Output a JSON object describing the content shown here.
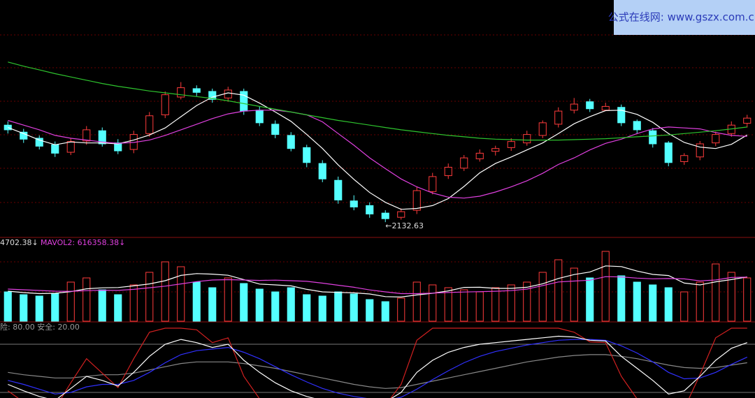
{
  "watermark": "公式在线网: www.gszx.com.cn",
  "chart_data": [
    {
      "type": "candlestick",
      "open": [
        2340,
        2325,
        2312,
        2298,
        2282,
        2306,
        2328,
        2302,
        2288,
        2322,
        2362,
        2400,
        2418,
        2412,
        2398,
        2412,
        2372,
        2342,
        2318,
        2292,
        2258,
        2222,
        2178,
        2168,
        2152,
        2143,
        2158,
        2198,
        2232,
        2248,
        2268,
        2284,
        2292,
        2302,
        2318,
        2342,
        2372,
        2390,
        2372,
        2378,
        2348,
        2328,
        2302,
        2262,
        2272,
        2302,
        2322,
        2344
      ],
      "high": [
        2348,
        2332,
        2318,
        2305,
        2312,
        2338,
        2335,
        2310,
        2328,
        2368,
        2412,
        2432,
        2425,
        2418,
        2422,
        2418,
        2380,
        2350,
        2325,
        2298,
        2265,
        2230,
        2190,
        2175,
        2158,
        2162,
        2208,
        2238,
        2258,
        2276,
        2288,
        2296,
        2312,
        2328,
        2350,
        2378,
        2398,
        2396,
        2388,
        2384,
        2352,
        2334,
        2306,
        2280,
        2306,
        2326,
        2348,
        2362
      ],
      "low": [
        2322,
        2302,
        2288,
        2272,
        2276,
        2298,
        2294,
        2278,
        2280,
        2315,
        2355,
        2395,
        2402,
        2388,
        2390,
        2362,
        2338,
        2312,
        2284,
        2250,
        2218,
        2172,
        2158,
        2142,
        2132.63,
        2138,
        2150,
        2192,
        2225,
        2242,
        2262,
        2275,
        2285,
        2296,
        2312,
        2335,
        2365,
        2368,
        2370,
        2338,
        2322,
        2292,
        2252,
        2255,
        2265,
        2295,
        2315,
        2335
      ],
      "close": [
        2330,
        2310,
        2295,
        2280,
        2305,
        2330,
        2300,
        2285,
        2320,
        2360,
        2405,
        2420,
        2410,
        2395,
        2415,
        2370,
        2345,
        2320,
        2290,
        2260,
        2225,
        2180,
        2165,
        2150,
        2140,
        2155,
        2200,
        2230,
        2250,
        2270,
        2280,
        2290,
        2305,
        2320,
        2345,
        2370,
        2385,
        2375,
        2380,
        2345,
        2330,
        2300,
        2260,
        2275,
        2300,
        2320,
        2340,
        2355
      ],
      "up_color": "#ff3c3c",
      "down_color": "#54ffff",
      "ylim": [
        2100,
        2600
      ],
      "series": [
        {
          "color": "#ffffff",
          "values": [
            2335,
            2322,
            2308,
            2298,
            2304,
            2302,
            2302,
            2300,
            2308,
            2319,
            2334,
            2358,
            2382,
            2400,
            2409,
            2404,
            2387,
            2368,
            2348,
            2320,
            2290,
            2255,
            2224,
            2196,
            2175,
            2160,
            2162,
            2168,
            2183,
            2209,
            2238,
            2258,
            2272,
            2287,
            2302,
            2322,
            2343,
            2358,
            2371,
            2372,
            2363,
            2346,
            2322,
            2303,
            2293,
            2290,
            2299,
            2319
          ]
        },
        {
          "color": "#e040e0",
          "values": [
            2350,
            2340,
            2330,
            2318,
            2312,
            2308,
            2304,
            2301,
            2303,
            2308,
            2318,
            2330,
            2342,
            2354,
            2364,
            2370,
            2372,
            2372,
            2368,
            2362,
            2347,
            2322,
            2297,
            2270,
            2247,
            2225,
            2208,
            2195,
            2186,
            2184,
            2188,
            2197,
            2208,
            2221,
            2237,
            2256,
            2270,
            2287,
            2301,
            2310,
            2322,
            2332,
            2336,
            2334,
            2332,
            2324,
            2318,
            2316
          ]
        },
        {
          "color": "#2ec42e",
          "values": [
            2475,
            2466,
            2458,
            2450,
            2443,
            2436,
            2429,
            2423,
            2418,
            2413,
            2409,
            2405,
            2401,
            2397,
            2392,
            2386,
            2380,
            2374,
            2368,
            2362,
            2356,
            2350,
            2345,
            2340,
            2335,
            2330,
            2326,
            2322,
            2318,
            2315,
            2312,
            2310,
            2309,
            2308,
            2308,
            2308,
            2309,
            2310,
            2311,
            2313,
            2315,
            2317,
            2319,
            2322,
            2325,
            2328,
            2332,
            2336
          ]
        }
      ],
      "annotations": [
        {
          "text": "←2132.63",
          "x": 24,
          "y": 2132.63
        }
      ]
    },
    {
      "type": "bar",
      "values": [
        420000,
        380000,
        360000,
        400000,
        560000,
        620000,
        450000,
        380000,
        520000,
        700000,
        850000,
        780000,
        560000,
        480000,
        620000,
        540000,
        460000,
        420000,
        480000,
        380000,
        360000,
        420000,
        390000,
        310000,
        280000,
        330000,
        560000,
        520000,
        480000,
        450000,
        420000,
        480000,
        520000,
        560000,
        700000,
        880000,
        760000,
        620000,
        1000000,
        650000,
        560000,
        520000,
        480000,
        420000,
        560000,
        820000,
        700000,
        620000
      ],
      "ylim": [
        0,
        1100000
      ],
      "legend_texts": [
        {
          "text": "4702.38↓",
          "color": "#dddddd"
        },
        {
          "text": "MAVOL2: 616358.38↓",
          "color": "#e040e0"
        }
      ],
      "series": [
        {
          "color": "#ffffff",
          "values": [
            430000,
            410000,
            395000,
            400000,
            424000,
            464000,
            478000,
            482000,
            506000,
            534000,
            580000,
            656000,
            682000,
            674000,
            658000,
            596000,
            532000,
            520000,
            506000,
            456000,
            420000,
            412000,
            406000,
            390000,
            352000,
            346000,
            376000,
            400000,
            434000,
            484000,
            486000,
            470000,
            470000,
            486000,
            536000,
            612000,
            668000,
            704000,
            792000,
            782000,
            718000,
            670000,
            654000,
            546000,
            520000,
            564000,
            596000,
            634000
          ]
        },
        {
          "color": "#e040e0",
          "values": [
            460000,
            450000,
            440000,
            430000,
            428000,
            437000,
            444000,
            441000,
            456000,
            479000,
            502000,
            534000,
            567000,
            590000,
            595000,
            590000,
            584000,
            588000,
            580000,
            571000,
            545000,
            515000,
            486000,
            448000,
            420000,
            395000,
            395000,
            402000,
            411000,
            418000,
            423000,
            429000,
            438000,
            460000,
            510000,
            562000,
            575000,
            587000,
            638000,
            634000,
            617000,
            607000,
            611000,
            606000,
            578000,
            590000,
            626000,
            632000
          ]
        }
      ]
    },
    {
      "type": "line",
      "ylim": [
        0,
        100
      ],
      "tick_names": [
        "险:",
        "安全:"
      ],
      "yticks": [
        {
          "value": 80,
          "label": "80.00"
        },
        {
          "value": 20,
          "label": "20.00"
        }
      ],
      "series": [
        {
          "color": "#888888",
          "values": [
            45,
            42,
            40,
            38,
            38,
            40,
            42,
            42,
            44,
            48,
            52,
            56,
            58,
            58,
            58,
            56,
            53,
            50,
            46,
            42,
            38,
            34,
            30,
            27,
            25,
            26,
            30,
            34,
            38,
            42,
            46,
            50,
            54,
            58,
            61,
            64,
            66,
            67,
            67,
            65,
            62,
            58,
            54,
            51,
            50,
            51,
            54,
            57
          ]
        },
        {
          "color": "#d02020",
          "values": [
            22,
            8,
            2,
            0,
            32,
            62,
            44,
            26,
            62,
            95,
            100,
            100,
            98,
            82,
            88,
            40,
            12,
            0,
            0,
            0,
            0,
            0,
            0,
            0,
            4,
            30,
            85,
            100,
            100,
            100,
            100,
            100,
            100,
            100,
            100,
            100,
            95,
            83,
            82,
            40,
            12,
            0,
            0,
            0,
            42,
            88,
            100,
            100
          ]
        },
        {
          "color": "#3030ff",
          "values": [
            35,
            30,
            24,
            18,
            20,
            27,
            30,
            30,
            35,
            45,
            57,
            67,
            72,
            74,
            76,
            70,
            62,
            52,
            42,
            33,
            25,
            19,
            15,
            12,
            10,
            14,
            24,
            36,
            47,
            57,
            65,
            71,
            75,
            79,
            82,
            85,
            86,
            86,
            85,
            78,
            69,
            58,
            45,
            37,
            38,
            45,
            55,
            64
          ]
        },
        {
          "color": "#ffffff",
          "values": [
            30,
            22,
            15,
            10,
            25,
            40,
            35,
            28,
            45,
            65,
            80,
            86,
            82,
            76,
            80,
            60,
            45,
            32,
            22,
            15,
            10,
            8,
            6,
            5,
            8,
            20,
            45,
            60,
            70,
            76,
            80,
            82,
            84,
            86,
            88,
            90,
            89,
            85,
            84,
            65,
            50,
            35,
            18,
            22,
            40,
            60,
            75,
            82
          ]
        }
      ]
    }
  ]
}
